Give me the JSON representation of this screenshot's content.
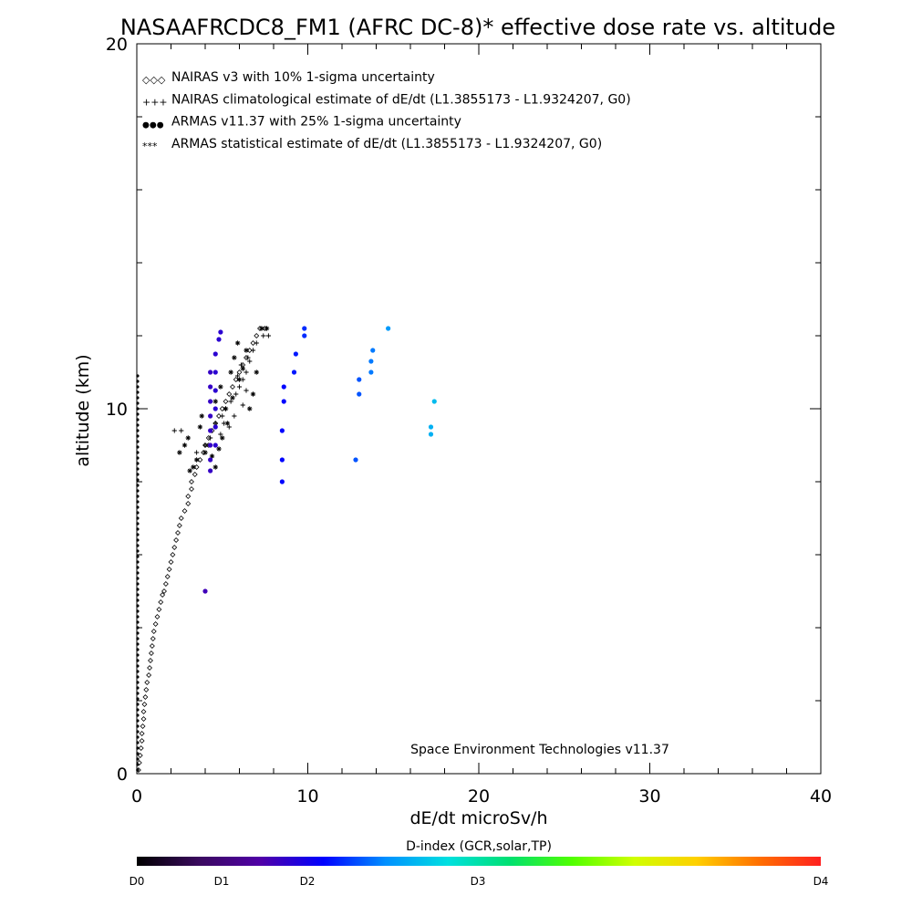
{
  "chart_data": {
    "type": "scatter",
    "title": "NASAAFRCDC8_FM1 (AFRC DC-8)* effective dose rate vs. altitude",
    "xlabel": "dE/dt microSv/h",
    "ylabel": "altitude (km)",
    "xlim": [
      0,
      40
    ],
    "ylim": [
      0,
      20
    ],
    "x_ticks": [
      0,
      10,
      20,
      30,
      40
    ],
    "y_ticks": [
      0,
      10,
      20
    ],
    "credit": "Space Environment Technologies v11.37",
    "legend_placement": "top-left",
    "legend": [
      {
        "symbol": "◇◇◇",
        "label": "NAIRAS v3 with 10% 1-sigma uncertainty",
        "color": "#000000"
      },
      {
        "symbol": "+++",
        "label": "NAIRAS climatological estimate of dE/dt (L1.3855173 - L1.9324207, G0)",
        "color": "#000000"
      },
      {
        "symbol": "●●●",
        "label": "ARMAS v11.37 with 25% 1-sigma uncertainty",
        "color": "#1a3fd8"
      },
      {
        "symbol": "***",
        "label": "ARMAS statistical estimate of dE/dt (L1.3855173 - L1.9324207, G0)",
        "color": "#000000"
      }
    ],
    "colorbar": {
      "title": "D-index (GCR,solar,TP)",
      "labels": [
        "D0",
        "D1",
        "D2",
        "D3",
        "D4"
      ],
      "stops": [
        "#000000",
        "#3a0a5e",
        "#5000a8",
        "#0000ff",
        "#0090ff",
        "#00e0e0",
        "#00e070",
        "#50ff00",
        "#d0ff00",
        "#ffd000",
        "#ff7000",
        "#ff2020"
      ]
    },
    "series": [
      {
        "name": "NAIRAS v3 with 10% 1-sigma uncertainty",
        "marker": "diamond",
        "color": "#000000",
        "points": [
          [
            0.1,
            0.1
          ],
          [
            0.15,
            0.3
          ],
          [
            0.2,
            0.5
          ],
          [
            0.25,
            0.7
          ],
          [
            0.3,
            0.9
          ],
          [
            0.3,
            1.1
          ],
          [
            0.35,
            1.3
          ],
          [
            0.4,
            1.5
          ],
          [
            0.4,
            1.7
          ],
          [
            0.45,
            1.9
          ],
          [
            0.5,
            2.1
          ],
          [
            0.55,
            2.3
          ],
          [
            0.6,
            2.5
          ],
          [
            0.7,
            2.7
          ],
          [
            0.75,
            2.9
          ],
          [
            0.8,
            3.1
          ],
          [
            0.85,
            3.3
          ],
          [
            0.9,
            3.5
          ],
          [
            0.95,
            3.7
          ],
          [
            1.0,
            3.9
          ],
          [
            1.1,
            4.1
          ],
          [
            1.2,
            4.3
          ],
          [
            1.3,
            4.5
          ],
          [
            1.4,
            4.7
          ],
          [
            1.5,
            4.9
          ],
          [
            1.6,
            5.0
          ],
          [
            1.7,
            5.2
          ],
          [
            1.8,
            5.4
          ],
          [
            1.9,
            5.6
          ],
          [
            2.0,
            5.8
          ],
          [
            2.1,
            6.0
          ],
          [
            2.2,
            6.2
          ],
          [
            2.3,
            6.4
          ],
          [
            2.4,
            6.6
          ],
          [
            2.5,
            6.8
          ],
          [
            2.6,
            7.0
          ],
          [
            2.8,
            7.2
          ],
          [
            3.0,
            7.4
          ],
          [
            3.0,
            7.6
          ],
          [
            3.2,
            7.8
          ],
          [
            3.2,
            8.0
          ],
          [
            3.4,
            8.2
          ],
          [
            3.5,
            8.4
          ],
          [
            3.7,
            8.6
          ],
          [
            3.9,
            8.8
          ],
          [
            4.0,
            9.0
          ],
          [
            4.2,
            9.2
          ],
          [
            4.4,
            9.4
          ],
          [
            4.6,
            9.6
          ],
          [
            4.8,
            9.8
          ],
          [
            5.0,
            10.0
          ],
          [
            5.2,
            10.2
          ],
          [
            5.4,
            10.4
          ],
          [
            5.6,
            10.6
          ],
          [
            5.8,
            10.8
          ],
          [
            6.0,
            11.0
          ],
          [
            6.2,
            11.2
          ],
          [
            6.4,
            11.4
          ],
          [
            6.6,
            11.6
          ],
          [
            6.8,
            11.8
          ],
          [
            7.0,
            12.0
          ],
          [
            7.2,
            12.2
          ],
          [
            7.5,
            12.2
          ]
        ]
      },
      {
        "name": "NAIRAS climatological estimate of dE/dt (L1.3855173 - L1.9324207, G0)",
        "marker": "plus",
        "color": "#000000",
        "points": [
          [
            2.2,
            9.4
          ],
          [
            2.6,
            9.4
          ],
          [
            3.5,
            8.8
          ],
          [
            4.0,
            9.0
          ],
          [
            4.3,
            9.2
          ],
          [
            4.6,
            9.6
          ],
          [
            5.0,
            9.8
          ],
          [
            5.2,
            10.0
          ],
          [
            5.5,
            10.2
          ],
          [
            5.8,
            10.4
          ],
          [
            6.0,
            10.6
          ],
          [
            6.2,
            10.8
          ],
          [
            6.4,
            11.0
          ],
          [
            6.1,
            11.2
          ],
          [
            6.5,
            11.4
          ],
          [
            6.8,
            11.6
          ],
          [
            7.0,
            11.8
          ],
          [
            7.4,
            12.0
          ],
          [
            7.7,
            12.0
          ],
          [
            5.4,
            9.5
          ],
          [
            5.7,
            9.8
          ],
          [
            6.2,
            10.1
          ],
          [
            6.4,
            10.5
          ],
          [
            5.9,
            10.9
          ],
          [
            6.6,
            11.3
          ],
          [
            4.9,
            9.3
          ],
          [
            5.1,
            9.6
          ]
        ]
      },
      {
        "name": "ARMAS statistical estimate of dE/dt (L1.3855173 - L1.9324207, G0)",
        "marker": "asterisk",
        "color": "#000000",
        "points": [
          [
            2.5,
            8.8
          ],
          [
            2.8,
            9.0
          ],
          [
            3.0,
            9.2
          ],
          [
            3.1,
            8.3
          ],
          [
            3.3,
            8.4
          ],
          [
            3.5,
            8.6
          ],
          [
            3.7,
            9.5
          ],
          [
            3.8,
            9.8
          ],
          [
            4.0,
            8.8
          ],
          [
            4.2,
            9.0
          ],
          [
            4.4,
            8.7
          ],
          [
            4.6,
            8.4
          ],
          [
            4.8,
            8.9
          ],
          [
            5.0,
            9.2
          ],
          [
            4.6,
            10.2
          ],
          [
            4.9,
            10.6
          ],
          [
            5.2,
            10.0
          ],
          [
            5.5,
            11.0
          ],
          [
            5.7,
            11.4
          ],
          [
            5.9,
            11.8
          ],
          [
            6.2,
            11.1
          ],
          [
            6.4,
            11.6
          ],
          [
            6.6,
            10.0
          ],
          [
            6.8,
            10.4
          ],
          [
            7.0,
            11.0
          ],
          [
            7.3,
            12.2
          ],
          [
            7.6,
            12.2
          ],
          [
            5.3,
            9.6
          ],
          [
            5.6,
            10.3
          ],
          [
            6.0,
            10.8
          ]
        ]
      },
      {
        "name": "ARMAS v11.37 with 25% 1-sigma uncertainty",
        "marker": "dot",
        "points": [
          [
            4.0,
            5.0,
            0.8
          ],
          [
            4.3,
            8.3,
            0.85
          ],
          [
            4.3,
            8.6,
            0.85
          ],
          [
            4.3,
            9.0,
            0.85
          ],
          [
            4.3,
            9.4,
            0.85
          ],
          [
            4.3,
            9.8,
            0.85
          ],
          [
            4.3,
            10.2,
            0.85
          ],
          [
            4.3,
            10.6,
            0.85
          ],
          [
            4.3,
            11.0,
            0.85
          ],
          [
            4.6,
            9.0,
            0.9
          ],
          [
            4.6,
            9.5,
            0.9
          ],
          [
            4.6,
            10.0,
            0.9
          ],
          [
            4.6,
            10.5,
            0.9
          ],
          [
            4.6,
            11.0,
            0.9
          ],
          [
            4.6,
            11.5,
            0.9
          ],
          [
            4.8,
            11.9,
            0.9
          ],
          [
            4.9,
            12.1,
            0.9
          ],
          [
            8.5,
            8.0,
            1.1
          ],
          [
            8.5,
            8.6,
            1.1
          ],
          [
            8.5,
            9.4,
            1.1
          ],
          [
            8.6,
            10.2,
            1.1
          ],
          [
            8.6,
            10.6,
            1.1
          ],
          [
            9.2,
            11.0,
            1.15
          ],
          [
            9.3,
            11.5,
            1.15
          ],
          [
            9.8,
            12.0,
            1.2
          ],
          [
            9.8,
            12.2,
            1.2
          ],
          [
            12.8,
            8.6,
            1.3
          ],
          [
            13.0,
            10.4,
            1.3
          ],
          [
            13.0,
            10.8,
            1.3
          ],
          [
            13.7,
            11.0,
            1.4
          ],
          [
            13.7,
            11.3,
            1.4
          ],
          [
            13.8,
            11.6,
            1.4
          ],
          [
            14.7,
            12.2,
            1.5
          ],
          [
            17.2,
            9.3,
            1.6
          ],
          [
            17.2,
            9.5,
            1.6
          ],
          [
            17.4,
            10.2,
            1.65
          ]
        ]
      }
    ],
    "baseline_series": {
      "name": "near-zero ARMAS readings",
      "marker": "dot",
      "color": "#000000",
      "x": 0.05,
      "y_from": 0.1,
      "y_to": 11.0,
      "step": 0.15
    }
  }
}
